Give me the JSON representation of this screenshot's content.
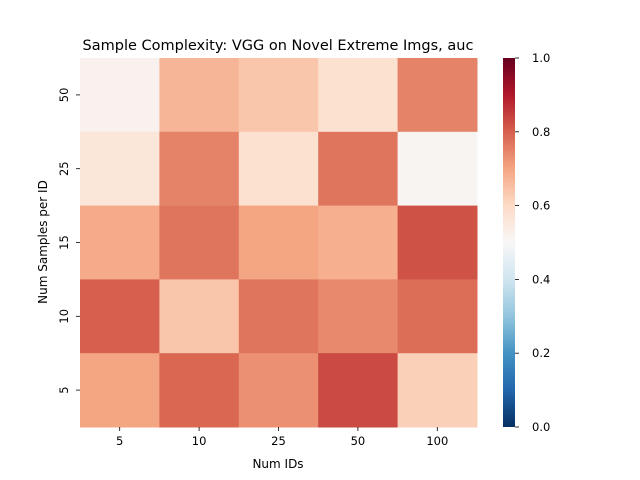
{
  "chart_data": {
    "type": "heatmap",
    "title": "Sample Complexity: VGG on Novel Extreme Imgs, auc",
    "xlabel": "Num IDs",
    "ylabel": "Num Samples per ID",
    "x_categories": [
      "5",
      "10",
      "25",
      "50",
      "100"
    ],
    "y_categories": [
      "50",
      "25",
      "15",
      "10",
      "5"
    ],
    "values": [
      [
        0.52,
        0.67,
        0.64,
        0.58,
        0.75
      ],
      [
        0.56,
        0.75,
        0.58,
        0.77,
        0.51
      ],
      [
        0.69,
        0.77,
        0.7,
        0.68,
        0.82
      ],
      [
        0.8,
        0.64,
        0.77,
        0.74,
        0.78
      ],
      [
        0.7,
        0.79,
        0.73,
        0.83,
        0.62
      ]
    ],
    "colorbar": {
      "range": [
        0.0,
        1.0
      ],
      "ticks": [
        "0.0",
        "0.2",
        "0.4",
        "0.6",
        "0.8",
        "1.0"
      ],
      "colormap": "RdBu_r"
    },
    "grid": false
  }
}
